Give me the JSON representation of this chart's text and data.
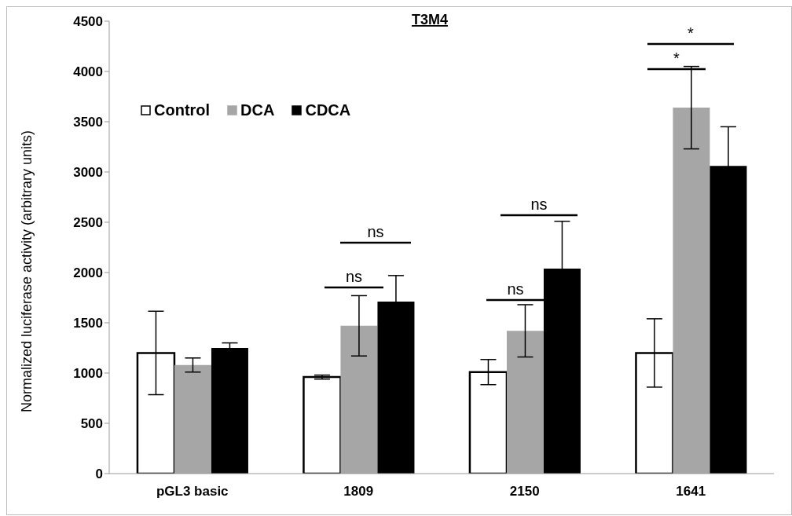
{
  "chart_data": {
    "type": "bar",
    "title": "T3M4",
    "ylabel": "Normalized  luciferase activity (arbitrary units)",
    "categories": [
      "pGL3 basic",
      "1809",
      "2150",
      "1641"
    ],
    "series": [
      {
        "name": "Control",
        "color": "#ffffff",
        "values": [
          1200,
          960,
          1010,
          1200
        ],
        "errors": [
          415,
          20,
          125,
          340
        ]
      },
      {
        "name": "DCA",
        "color": "#a6a6a6",
        "values": [
          1080,
          1470,
          1420,
          3640
        ],
        "errors": [
          70,
          300,
          260,
          410
        ]
      },
      {
        "name": "CDCA",
        "color": "#000000",
        "values": [
          1250,
          1710,
          2040,
          3060
        ],
        "errors": [
          50,
          260,
          470,
          390
        ]
      }
    ],
    "ylim": [
      0,
      4500
    ],
    "yticks": [
      0,
      500,
      1000,
      1500,
      2000,
      2500,
      3000,
      3500,
      4000,
      4500
    ],
    "grid": false,
    "legend": "top left",
    "annotations": [
      "ns",
      "ns",
      "ns",
      "ns",
      "*",
      "*"
    ]
  }
}
